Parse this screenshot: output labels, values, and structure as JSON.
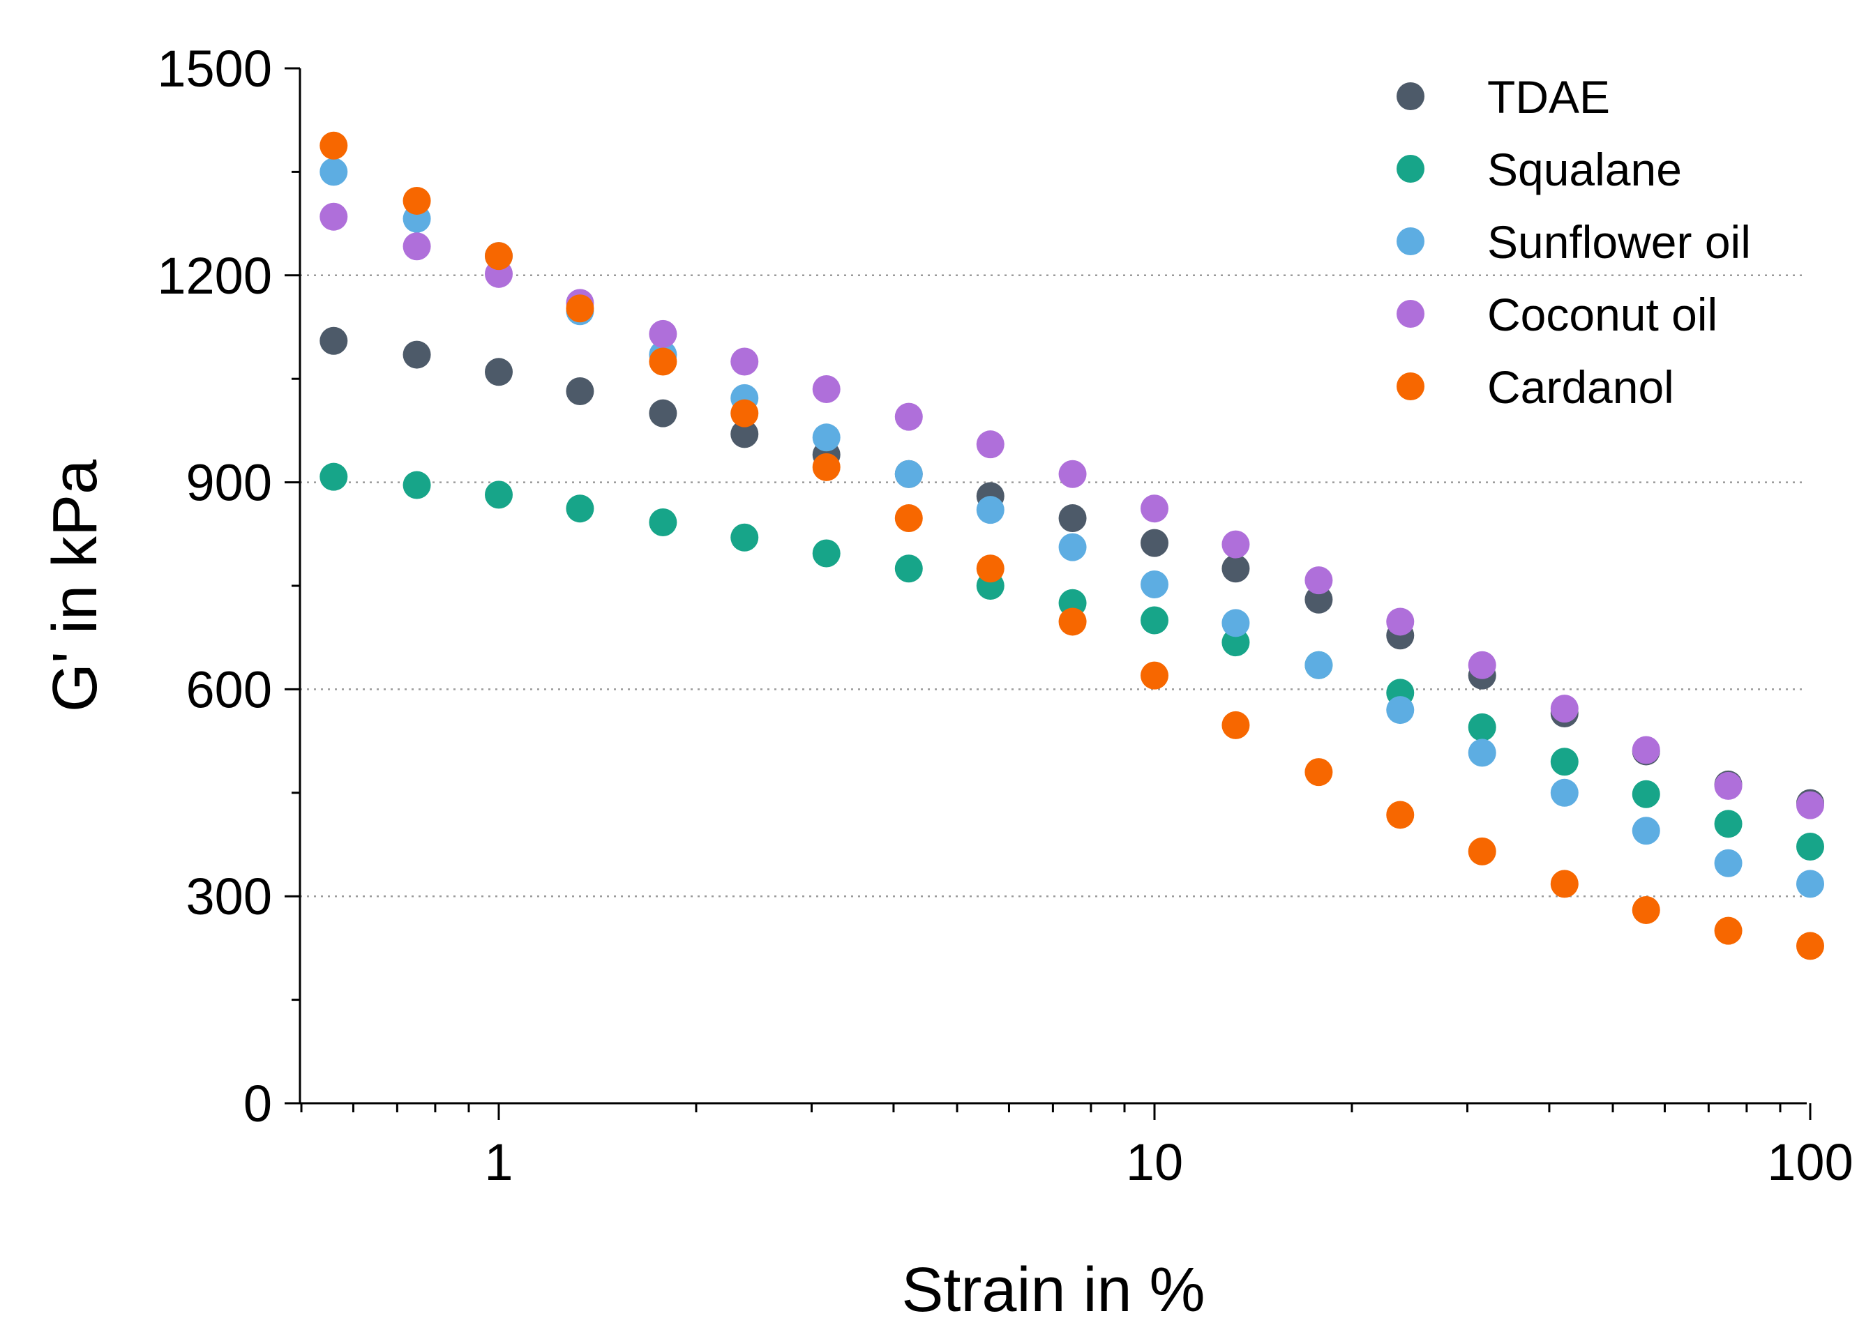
{
  "chart_data": {
    "type": "scatter",
    "title": "",
    "xlabel": "Strain in %",
    "ylabel": "G' in kPa",
    "xscale": "log",
    "xlim": [
      0.5,
      100
    ],
    "ylim": [
      0,
      1500
    ],
    "xticks": [
      1,
      10,
      100
    ],
    "xtick_labels": [
      "1",
      "10",
      "100"
    ],
    "yticks": [
      0,
      300,
      600,
      900,
      1200,
      1500
    ],
    "ytick_labels": [
      "0",
      "300",
      "600",
      "900",
      "1200",
      "1500"
    ],
    "grid": "horizontal dotted at 300, 600, 900, 1200",
    "legend_position": "top-right",
    "x": [
      0.56,
      0.75,
      1.0,
      1.33,
      1.78,
      2.37,
      3.16,
      4.22,
      5.62,
      7.5,
      10.0,
      13.3,
      17.8,
      23.7,
      31.6,
      42.2,
      56.2,
      75.0,
      100.0
    ],
    "series": [
      {
        "name": "TDAE",
        "color": "#4d5a69",
        "values": [
          1105,
          1085,
          1060,
          1032,
          1000,
          970,
          940,
          912,
          880,
          848,
          812,
          775,
          730,
          678,
          620,
          565,
          510,
          462,
          435
        ]
      },
      {
        "name": "Squalane",
        "color": "#17a589",
        "values": [
          908,
          896,
          882,
          862,
          842,
          820,
          797,
          775,
          750,
          725,
          700,
          668,
          635,
          595,
          545,
          495,
          448,
          405,
          372
        ]
      },
      {
        "name": "Sunflower oil",
        "color": "#5dade2",
        "values": [
          1350,
          1282,
          1228,
          1148,
          1085,
          1022,
          965,
          912,
          860,
          806,
          752,
          696,
          635,
          570,
          508,
          450,
          395,
          348,
          318
        ]
      },
      {
        "name": "Coconut oil",
        "color": "#af6fda",
        "values": [
          1285,
          1242,
          1202,
          1160,
          1115,
          1075,
          1035,
          995,
          955,
          912,
          862,
          810,
          758,
          698,
          635,
          572,
          512,
          460,
          432
        ]
      },
      {
        "name": "Cardanol",
        "color": "#f76700",
        "values": [
          1388,
          1308,
          1228,
          1152,
          1075,
          1000,
          922,
          848,
          775,
          698,
          620,
          548,
          480,
          418,
          365,
          318,
          280,
          250,
          228
        ]
      }
    ]
  }
}
